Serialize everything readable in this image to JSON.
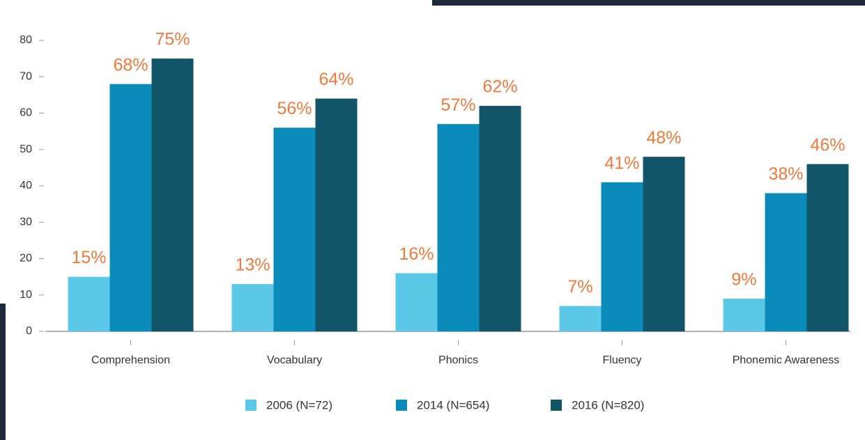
{
  "chart_data": {
    "type": "bar",
    "categories": [
      "Comprehension",
      "Vocabulary",
      "Phonics",
      "Fluency",
      "Phonemic Awareness"
    ],
    "series": [
      {
        "name": "2006 (N=72)",
        "color": "#5cc8e8",
        "values": [
          15,
          13,
          16,
          7,
          9
        ],
        "value_labels": [
          "15%",
          "13%",
          "16%",
          "7%",
          "9%"
        ]
      },
      {
        "name": "2014 (N=654)",
        "color": "#0b8bb9",
        "values": [
          68,
          56,
          57,
          41,
          38
        ],
        "value_labels": [
          "68%",
          "56%",
          "57%",
          "41%",
          "38%"
        ]
      },
      {
        "name": "2016 (N=820)",
        "color": "#125568",
        "values": [
          75,
          64,
          62,
          48,
          46
        ],
        "value_labels": [
          "75%",
          "64%",
          "62%",
          "48%",
          "46%"
        ]
      }
    ],
    "ylim": [
      0,
      80
    ],
    "yticks": [
      0,
      10,
      20,
      30,
      40,
      50,
      60,
      70,
      80
    ],
    "grid": false,
    "legend": "bottom"
  }
}
